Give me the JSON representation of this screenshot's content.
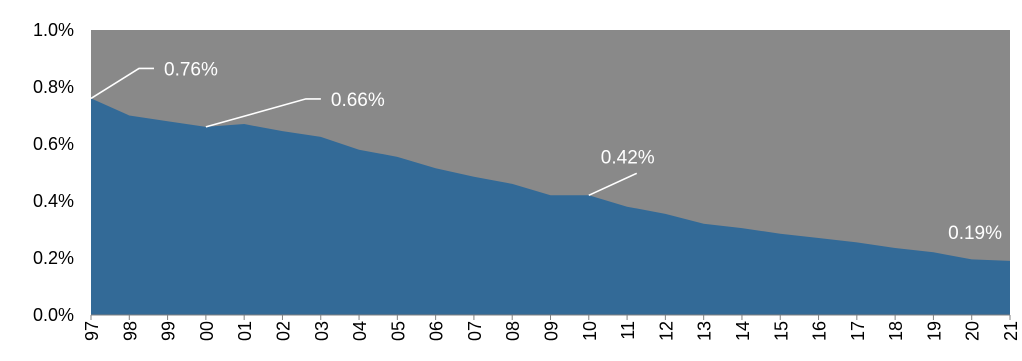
{
  "chart_data": {
    "type": "area",
    "title": "",
    "xlabel": "",
    "ylabel": "",
    "x": [
      "97",
      "98",
      "99",
      "00",
      "01",
      "02",
      "03",
      "04",
      "05",
      "06",
      "07",
      "08",
      "09",
      "10",
      "11",
      "12",
      "13",
      "14",
      "15",
      "16",
      "17",
      "18",
      "19",
      "20",
      "21"
    ],
    "values": [
      0.76,
      0.7,
      0.68,
      0.66,
      0.67,
      0.645,
      0.625,
      0.58,
      0.555,
      0.515,
      0.485,
      0.46,
      0.42,
      0.42,
      0.38,
      0.355,
      0.32,
      0.305,
      0.285,
      0.27,
      0.255,
      0.235,
      0.22,
      0.195,
      0.19
    ],
    "ylim": [
      0,
      1.0
    ],
    "yticks": [
      "0.0%",
      "0.2%",
      "0.4%",
      "0.6%",
      "0.8%",
      "1.0%"
    ],
    "grid": false,
    "colors": {
      "area": "#336a97",
      "background": "#898989",
      "leader": "#ffffff",
      "label": "#ffffff"
    },
    "annotations": [
      {
        "index": 0,
        "text": "0.76%"
      },
      {
        "index": 3,
        "text": "0.66%"
      },
      {
        "index": 13,
        "text": "0.42%"
      },
      {
        "index": 24,
        "text": "0.19%"
      }
    ]
  }
}
